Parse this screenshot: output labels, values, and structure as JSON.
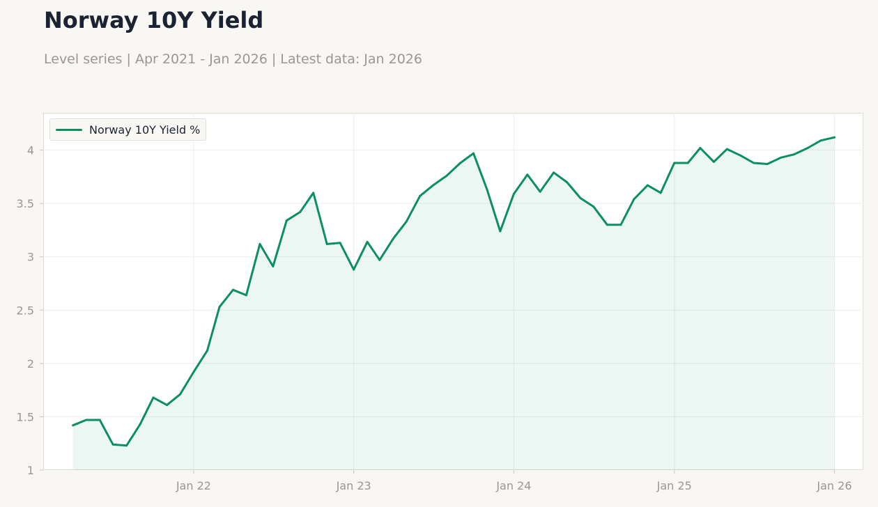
{
  "header": {
    "title": "Norway 10Y Yield",
    "subtitle": "Level series | Apr 2021 - Jan 2026 | Latest data: Jan 2026"
  },
  "legend": {
    "label": "Norway 10Y Yield %",
    "placement": "top-left"
  },
  "colors": {
    "series": "#0b8f62",
    "fill": "#0b8f62",
    "tick_text": "#9a9690",
    "grid": "#efedea"
  },
  "chart_data": {
    "type": "area",
    "title": "Norway 10Y Yield",
    "xlabel": "",
    "ylabel": "",
    "ylim": [
      1,
      4.35
    ],
    "xlim": [
      "2021-01-23",
      "2026-03-08"
    ],
    "grid": true,
    "x_ticks": [
      {
        "date": "2022-01-01",
        "label": "Jan 22"
      },
      {
        "date": "2023-01-01",
        "label": "Jan 23"
      },
      {
        "date": "2024-01-01",
        "label": "Jan 24"
      },
      {
        "date": "2025-01-01",
        "label": "Jan 25"
      },
      {
        "date": "2026-01-01",
        "label": "Jan 26"
      }
    ],
    "y_ticks": [
      1,
      1.5,
      2,
      2.5,
      3,
      3.5,
      4
    ],
    "series": [
      {
        "name": "Norway 10Y Yield %",
        "x": [
          "2021-04-01",
          "2021-05-01",
          "2021-06-01",
          "2021-07-01",
          "2021-08-01",
          "2021-09-01",
          "2021-10-01",
          "2021-11-01",
          "2021-12-01",
          "2022-01-01",
          "2022-02-01",
          "2022-03-01",
          "2022-04-01",
          "2022-05-01",
          "2022-06-01",
          "2022-07-01",
          "2022-08-01",
          "2022-09-01",
          "2022-10-01",
          "2022-11-01",
          "2022-12-01",
          "2023-01-01",
          "2023-02-01",
          "2023-03-01",
          "2023-04-01",
          "2023-05-01",
          "2023-06-01",
          "2023-07-01",
          "2023-08-01",
          "2023-09-01",
          "2023-10-01",
          "2023-11-01",
          "2023-12-01",
          "2024-01-01",
          "2024-02-01",
          "2024-03-01",
          "2024-04-01",
          "2024-05-01",
          "2024-06-01",
          "2024-07-01",
          "2024-08-01",
          "2024-09-01",
          "2024-10-01",
          "2024-11-01",
          "2024-12-01",
          "2025-01-01",
          "2025-02-01",
          "2025-03-01",
          "2025-04-01",
          "2025-05-01",
          "2025-06-01",
          "2025-07-01",
          "2025-08-01",
          "2025-09-01",
          "2025-10-01",
          "2025-11-01",
          "2025-12-01",
          "2026-01-01"
        ],
        "values": [
          1.42,
          1.47,
          1.47,
          1.24,
          1.23,
          1.43,
          1.68,
          1.61,
          1.71,
          1.92,
          2.12,
          2.53,
          2.69,
          2.64,
          3.12,
          2.91,
          3.34,
          3.42,
          3.6,
          3.12,
          3.13,
          2.88,
          3.14,
          2.97,
          3.17,
          3.33,
          3.57,
          3.67,
          3.76,
          3.88,
          3.97,
          3.63,
          3.24,
          3.59,
          3.77,
          3.61,
          3.79,
          3.7,
          3.55,
          3.47,
          3.3,
          3.3,
          3.54,
          3.67,
          3.6,
          3.88,
          3.88,
          4.02,
          3.89,
          4.01,
          3.95,
          3.88,
          3.87,
          3.93,
          3.96,
          4.02,
          4.09,
          4.12
        ]
      }
    ]
  }
}
